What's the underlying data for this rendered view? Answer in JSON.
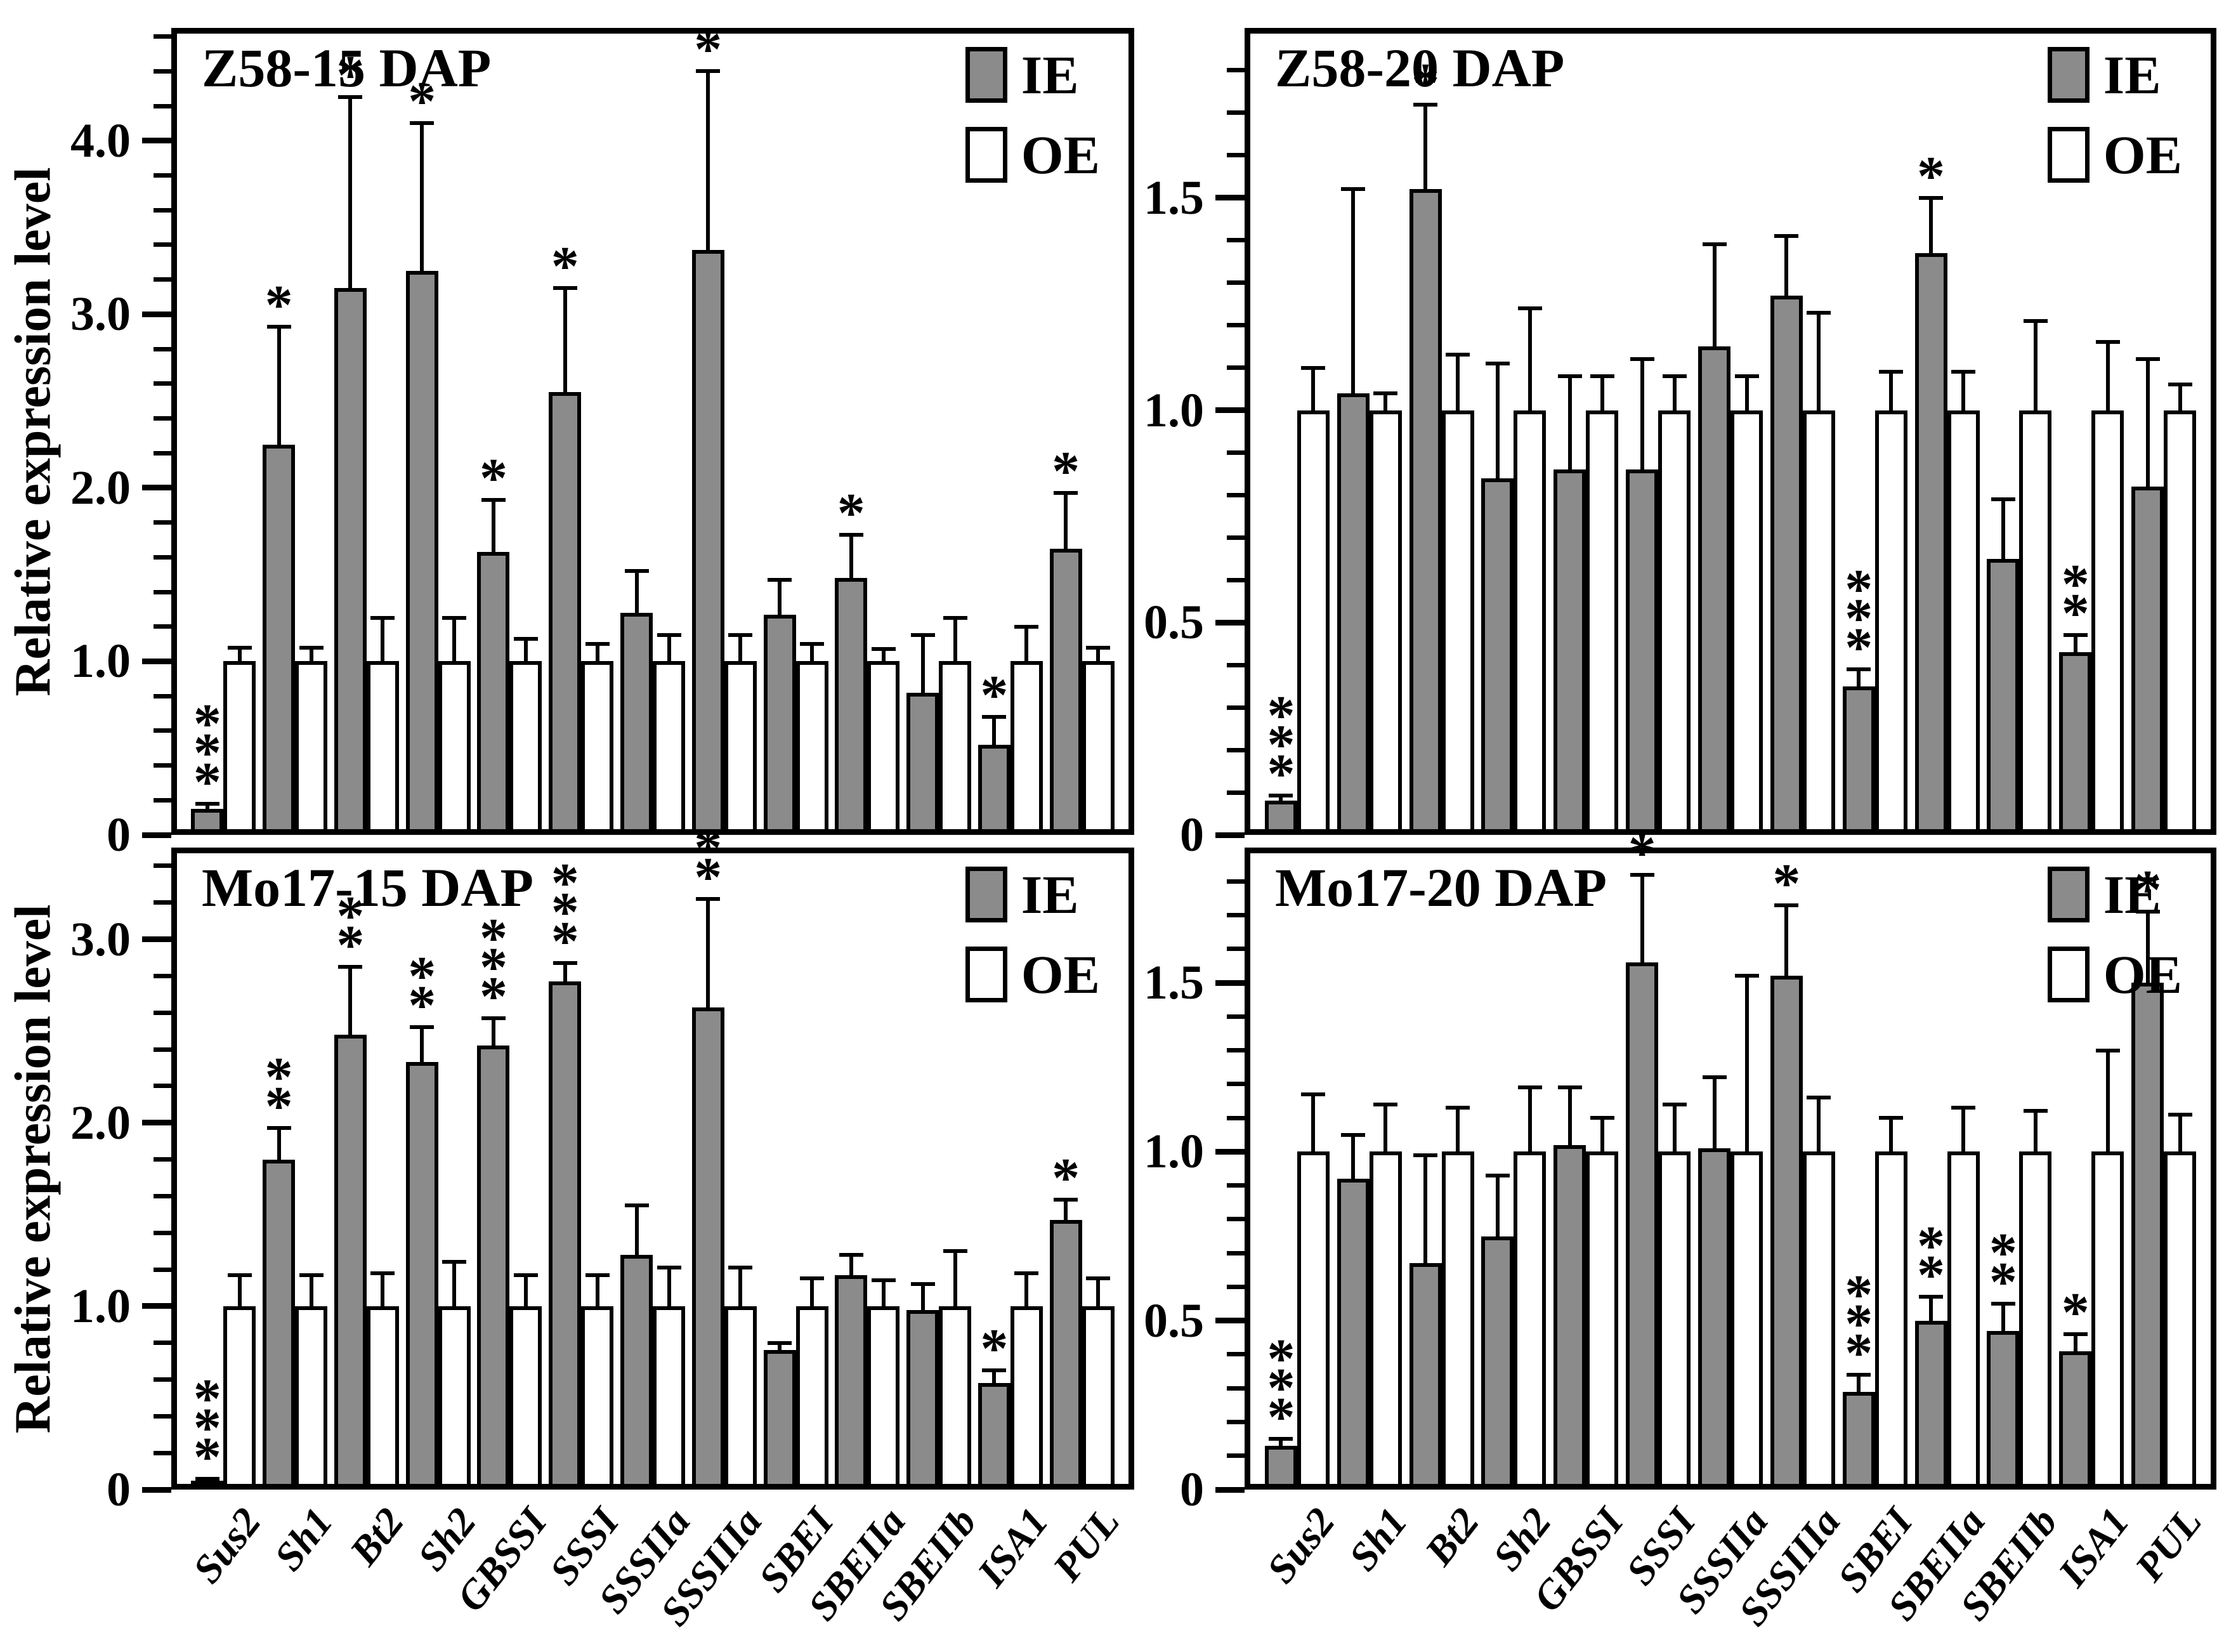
{
  "figure": {
    "y_axis_label": "Relative expression level",
    "colors": {
      "ie_fill": "#8b8b8b",
      "oe_fill": "#ffffff",
      "stroke": "#000000"
    }
  },
  "categories": [
    "Sus2",
    "Sh1",
    "Bt2",
    "Sh2",
    "GBSSI",
    "SSSI",
    "SSSIIa",
    "SSSIIIa",
    "SBEI",
    "SBEIIa",
    "SBEIIb",
    "ISA1",
    "PUL"
  ],
  "chart_data": [
    {
      "type": "bar",
      "title": "Z58-15 DAP",
      "ylabel": "Relative expression level",
      "ymax": 4.65,
      "minor_step": 0.2,
      "yticks": [
        {
          "value": 0,
          "label": "0"
        },
        {
          "value": 1.0,
          "label": "1.0"
        },
        {
          "value": 2.0,
          "label": "2.0"
        },
        {
          "value": 3.0,
          "label": "3.0"
        },
        {
          "value": 4.0,
          "label": "4.0"
        }
      ],
      "show_x_labels": false,
      "series": [
        {
          "name": "IE",
          "values": [
            0.15,
            2.25,
            3.15,
            3.25,
            1.63,
            2.55,
            1.28,
            3.37,
            1.27,
            1.48,
            0.82,
            0.52,
            1.65
          ],
          "errors": [
            0.03,
            0.68,
            1.1,
            0.85,
            0.3,
            0.6,
            0.24,
            1.03,
            0.2,
            0.25,
            0.33,
            0.16,
            0.32
          ],
          "sig": [
            "***",
            "*",
            "*",
            "*",
            "*",
            "*",
            "",
            "*",
            "",
            "*",
            "",
            "*",
            "*"
          ]
        },
        {
          "name": "OE",
          "values": [
            1.0,
            1.0,
            1.0,
            1.0,
            1.0,
            1.0,
            1.0,
            1.0,
            1.0,
            1.0,
            1.0,
            1.0,
            1.0
          ],
          "errors": [
            0.08,
            0.08,
            0.25,
            0.25,
            0.13,
            0.1,
            0.15,
            0.15,
            0.1,
            0.07,
            0.25,
            0.2,
            0.08
          ],
          "sig": [
            "",
            "",
            "",
            "",
            "",
            "",
            "",
            "",
            "",
            "",
            "",
            "",
            ""
          ]
        }
      ]
    },
    {
      "type": "bar",
      "title": "Z58-20 DAP",
      "ylabel": "",
      "ymax": 1.9,
      "minor_step": 0.1,
      "yticks": [
        {
          "value": 0,
          "label": "0"
        },
        {
          "value": 0.5,
          "label": "0.5"
        },
        {
          "value": 1.0,
          "label": "1.0"
        },
        {
          "value": 1.5,
          "label": "1.5"
        }
      ],
      "show_x_labels": false,
      "series": [
        {
          "name": "IE",
          "values": [
            0.08,
            1.04,
            1.52,
            0.84,
            0.86,
            0.86,
            1.15,
            1.27,
            0.35,
            1.37,
            0.65,
            0.43,
            0.82
          ],
          "errors": [
            0.012,
            0.48,
            0.2,
            0.27,
            0.22,
            0.26,
            0.24,
            0.14,
            0.04,
            0.13,
            0.14,
            0.04,
            0.3
          ],
          "sig": [
            "***",
            "",
            "*",
            "",
            "",
            "",
            "",
            "",
            "***",
            "*",
            "",
            "**",
            ""
          ]
        },
        {
          "name": "OE",
          "values": [
            1.0,
            1.0,
            1.0,
            1.0,
            1.0,
            1.0,
            1.0,
            1.0,
            1.0,
            1.0,
            1.0,
            1.0,
            1.0
          ],
          "errors": [
            0.1,
            0.04,
            0.13,
            0.24,
            0.08,
            0.08,
            0.08,
            0.23,
            0.09,
            0.09,
            0.21,
            0.16,
            0.06
          ],
          "sig": [
            "",
            "",
            "",
            "",
            "",
            "",
            "",
            "",
            "",
            "",
            "",
            "",
            ""
          ]
        }
      ]
    },
    {
      "type": "bar",
      "title": "Mo17-15 DAP",
      "ylabel": "Relative expression level",
      "ymax": 3.5,
      "minor_step": 0.2,
      "yticks": [
        {
          "value": 0,
          "label": "0"
        },
        {
          "value": 1.0,
          "label": "1.0"
        },
        {
          "value": 2.0,
          "label": "2.0"
        },
        {
          "value": 3.0,
          "label": "3.0"
        }
      ],
      "show_x_labels": true,
      "series": [
        {
          "name": "IE",
          "values": [
            0.05,
            1.8,
            2.48,
            2.33,
            2.42,
            2.77,
            1.28,
            2.63,
            0.76,
            1.17,
            0.98,
            0.58,
            1.47
          ],
          "errors": [
            0.01,
            0.17,
            0.37,
            0.19,
            0.15,
            0.1,
            0.27,
            0.59,
            0.04,
            0.11,
            0.14,
            0.07,
            0.11
          ],
          "sig": [
            "***",
            "**",
            "**",
            "**",
            "***",
            "***",
            "",
            "**",
            "",
            "",
            "",
            "*",
            "*"
          ]
        },
        {
          "name": "OE",
          "values": [
            1.0,
            1.0,
            1.0,
            1.0,
            1.0,
            1.0,
            1.0,
            1.0,
            1.0,
            1.0,
            1.0,
            1.0,
            1.0
          ],
          "errors": [
            0.17,
            0.17,
            0.18,
            0.24,
            0.17,
            0.17,
            0.21,
            0.21,
            0.15,
            0.14,
            0.3,
            0.18,
            0.15
          ],
          "sig": [
            "",
            "",
            "",
            "",
            "",
            "",
            "",
            "",
            "",
            "",
            "",
            "",
            ""
          ]
        }
      ]
    },
    {
      "type": "bar",
      "title": "Mo17-20 DAP",
      "ylabel": "",
      "ymax": 1.9,
      "minor_step": 0.1,
      "yticks": [
        {
          "value": 0,
          "label": "0"
        },
        {
          "value": 0.5,
          "label": "0.5"
        },
        {
          "value": 1.0,
          "label": "1.0"
        },
        {
          "value": 1.5,
          "label": "1.5"
        }
      ],
      "show_x_labels": true,
      "series": [
        {
          "name": "IE",
          "values": [
            0.13,
            0.92,
            0.67,
            0.75,
            1.02,
            1.56,
            1.01,
            1.52,
            0.29,
            0.5,
            0.47,
            0.41,
            1.5
          ],
          "errors": [
            0.02,
            0.13,
            0.32,
            0.18,
            0.17,
            0.26,
            0.21,
            0.21,
            0.05,
            0.07,
            0.08,
            0.05,
            0.21
          ],
          "sig": [
            "***",
            "",
            "",
            "",
            "",
            "*",
            "",
            "*",
            "***",
            "**",
            "**",
            "*",
            "*"
          ]
        },
        {
          "name": "OE",
          "values": [
            1.0,
            1.0,
            1.0,
            1.0,
            1.0,
            1.0,
            1.0,
            1.0,
            1.0,
            1.0,
            1.0,
            1.0,
            1.0
          ],
          "errors": [
            0.17,
            0.14,
            0.13,
            0.19,
            0.1,
            0.14,
            0.52,
            0.16,
            0.1,
            0.13,
            0.12,
            0.3,
            0.11
          ],
          "sig": [
            "",
            "",
            "",
            "",
            "",
            "",
            "",
            "",
            "",
            "",
            "",
            "",
            ""
          ]
        }
      ]
    }
  ]
}
